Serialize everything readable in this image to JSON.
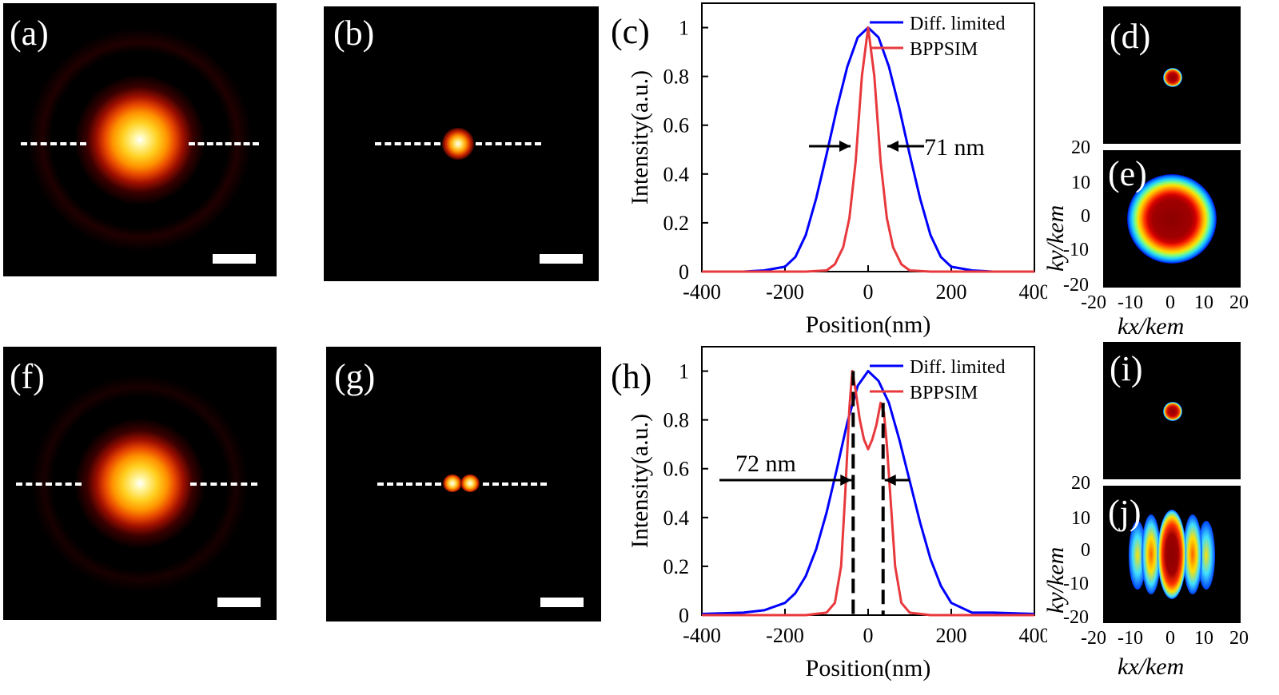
{
  "panels": {
    "a": "(a)",
    "b": "(b)",
    "c": "(c)",
    "d": "(d)",
    "e": "(e)",
    "f": "(f)",
    "g": "(g)",
    "h": "(h)",
    "i": "(i)",
    "j": "(j)"
  },
  "annotations": {
    "c_fwhm": "71 nm",
    "h_sep": "72 nm"
  },
  "kspace": {
    "xlabel": "kx/kem",
    "ylabel": "ky/kem",
    "ticks": [
      "-20",
      "-10",
      "0",
      "10",
      "20"
    ]
  },
  "chart_data": [
    {
      "id": "c",
      "type": "line",
      "xlabel": "Position(nm)",
      "ylabel": "Intensity(a.u.)",
      "xlim": [
        -400,
        400
      ],
      "ylim": [
        0,
        1.1
      ],
      "xticks": [
        "-400",
        "-200",
        "0",
        "200",
        "400"
      ],
      "yticks": [
        "0",
        "0.2",
        "0.4",
        "0.6",
        "0.8",
        "1"
      ],
      "legend_position": "top-right",
      "series": [
        {
          "name": "Diff. limited",
          "color": "#0000ff",
          "x": [
            -400,
            -300,
            -250,
            -200,
            -175,
            -150,
            -125,
            -100,
            -75,
            -50,
            -25,
            0,
            25,
            50,
            75,
            100,
            125,
            150,
            175,
            200,
            250,
            300,
            400
          ],
          "y": [
            0,
            0,
            0.005,
            0.02,
            0.06,
            0.15,
            0.3,
            0.48,
            0.67,
            0.84,
            0.96,
            1,
            0.96,
            0.84,
            0.67,
            0.48,
            0.3,
            0.15,
            0.06,
            0.02,
            0.005,
            0,
            0
          ]
        },
        {
          "name": "BPPSIM",
          "color": "#e8393d",
          "x": [
            -400,
            -150,
            -100,
            -80,
            -60,
            -45,
            -30,
            -15,
            0,
            15,
            30,
            45,
            60,
            80,
            100,
            150,
            400
          ],
          "y": [
            0,
            0,
            0.005,
            0.03,
            0.1,
            0.22,
            0.45,
            0.8,
            1,
            0.8,
            0.45,
            0.22,
            0.1,
            0.03,
            0.005,
            0,
            0
          ]
        }
      ]
    },
    {
      "id": "h",
      "type": "line",
      "xlabel": "Position(nm)",
      "ylabel": "Intensity(a.u.)",
      "xlim": [
        -400,
        400
      ],
      "ylim": [
        0,
        1.1
      ],
      "xticks": [
        "-400",
        "-200",
        "0",
        "200",
        "400"
      ],
      "yticks": [
        "0",
        "0.2",
        "0.4",
        "0.6",
        "0.8",
        "1"
      ],
      "legend_position": "top-right",
      "series": [
        {
          "name": "Diff. limited",
          "color": "#0000ff",
          "x": [
            -400,
            -300,
            -250,
            -200,
            -175,
            -150,
            -125,
            -100,
            -75,
            -50,
            -25,
            0,
            25,
            50,
            75,
            100,
            125,
            150,
            175,
            200,
            250,
            300,
            400
          ],
          "y": [
            0.005,
            0.01,
            0.02,
            0.05,
            0.09,
            0.16,
            0.27,
            0.42,
            0.6,
            0.79,
            0.94,
            1,
            0.96,
            0.87,
            0.72,
            0.55,
            0.38,
            0.23,
            0.12,
            0.05,
            0.01,
            0.01,
            0.005
          ]
        },
        {
          "name": "BPPSIM",
          "color": "#e8393d",
          "x": [
            -400,
            -150,
            -100,
            -80,
            -65,
            -55,
            -45,
            -38,
            -30,
            -20,
            -10,
            0,
            10,
            20,
            30,
            38,
            45,
            55,
            65,
            80,
            100,
            150,
            400
          ],
          "y": [
            0,
            0,
            0.01,
            0.05,
            0.2,
            0.5,
            0.85,
            1,
            0.92,
            0.8,
            0.72,
            0.68,
            0.72,
            0.78,
            0.87,
            0.83,
            0.7,
            0.45,
            0.2,
            0.05,
            0.01,
            0,
            0
          ]
        }
      ],
      "markers": {
        "dashed_lines_x": [
          -36,
          36
        ]
      }
    }
  ]
}
